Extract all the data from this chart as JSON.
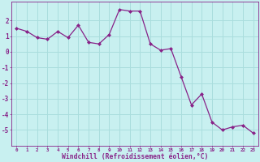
{
  "x": [
    0,
    1,
    2,
    3,
    4,
    5,
    6,
    7,
    8,
    9,
    10,
    11,
    12,
    13,
    14,
    15,
    16,
    17,
    18,
    19,
    20,
    21,
    22,
    23
  ],
  "y": [
    1.5,
    1.3,
    0.9,
    0.8,
    1.3,
    0.9,
    1.7,
    0.6,
    0.5,
    1.1,
    2.7,
    2.6,
    2.6,
    0.5,
    0.1,
    0.2,
    -1.6,
    -3.4,
    -2.7,
    -4.5,
    -5.0,
    -4.8,
    -4.7,
    -5.2
  ],
  "line_color": "#882288",
  "marker": "D",
  "marker_size": 2,
  "bg_color": "#c8f0f0",
  "grid_color": "#aadddd",
  "xlabel": "Windchill (Refroidissement éolien,°C)",
  "xlabel_color": "#882288",
  "tick_color": "#882288",
  "xlim": [
    -0.5,
    23.5
  ],
  "ylim": [
    -6,
    3.2
  ],
  "yticks": [
    -5,
    -4,
    -3,
    -2,
    -1,
    0,
    1,
    2
  ],
  "xticks": [
    0,
    1,
    2,
    3,
    4,
    5,
    6,
    7,
    8,
    9,
    10,
    11,
    12,
    13,
    14,
    15,
    16,
    17,
    18,
    19,
    20,
    21,
    22,
    23
  ]
}
